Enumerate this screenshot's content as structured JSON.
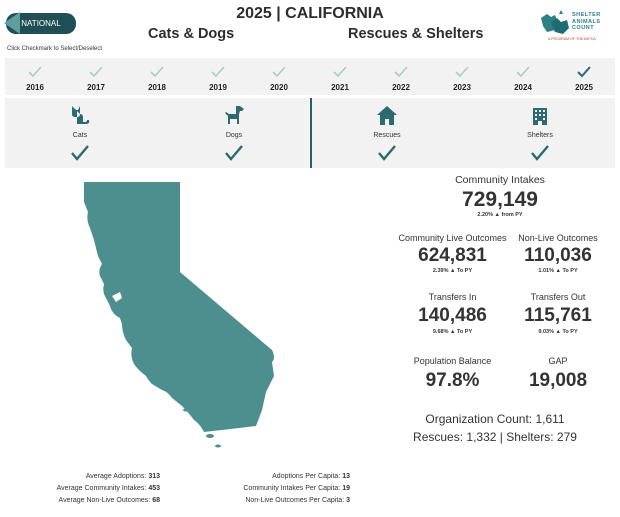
{
  "header": {
    "national_label": "NATIONAL",
    "title": "2025 | CALIFORNIA",
    "subtitle_left": "Cats & Dogs",
    "subtitle_right": "Rescues & Shelters",
    "instruction": "Click Checkmark to Select/Deselect",
    "logo_line1": "SHELTER",
    "logo_line2": "ANIMALS",
    "logo_line3": "COUNT",
    "logo_tagline": "A PROGRAM OF THE ASPCA"
  },
  "years": [
    "2016",
    "2017",
    "2018",
    "2019",
    "2020",
    "2021",
    "2022",
    "2023",
    "2024",
    "2025"
  ],
  "selected_year": "2025",
  "categories": {
    "cats": "Cats",
    "dogs": "Dogs",
    "rescues": "Rescues",
    "shelters": "Shelters"
  },
  "stats": {
    "community_intakes": {
      "label": "Community Intakes",
      "value": "729,149",
      "change": "2.20% ▲ from PY"
    },
    "community_live_outcomes": {
      "label": "Community Live Outcomes",
      "value": "624,831",
      "change": "2.39% ▲ To PY"
    },
    "non_live_outcomes": {
      "label": "Non-Live Outcomes",
      "value": "110,036",
      "change": "1.01% ▲ To PY"
    },
    "transfers_in": {
      "label": "Transfers In",
      "value": "140,486",
      "change": "9.68% ▲ To PY"
    },
    "transfers_out": {
      "label": "Transfers Out",
      "value": "115,761",
      "change": "9.03% ▲ To PY"
    },
    "population_balance": {
      "label": "Population Balance",
      "value": "97.8%"
    },
    "gap": {
      "label": "GAP",
      "value": "19,008"
    },
    "org_count": "Organization Count: 1,611",
    "org_breakdown": "Rescues: 1,332 | Shelters: 279"
  },
  "averages": {
    "adoptions_label": "Average Adoptions:",
    "adoptions_value": "313",
    "intakes_label": "Average Community Intakes:",
    "intakes_value": "453",
    "nonlive_label": "Average Non-Live Outcomes:",
    "nonlive_value": "68"
  },
  "per_capita": {
    "adoptions_label": "Adoptions Per Capita:",
    "adoptions_value": "13",
    "intakes_label": "Community Intakes Per Capita:",
    "intakes_value": "19",
    "nonlive_label": "Non-Live Outcomes Per Capita:",
    "nonlive_value": "3"
  },
  "colors": {
    "teal": "#2f6f75",
    "map": "#4d8f8f",
    "check_light": "#a8cdc8",
    "check_dark": "#2d6a70"
  }
}
